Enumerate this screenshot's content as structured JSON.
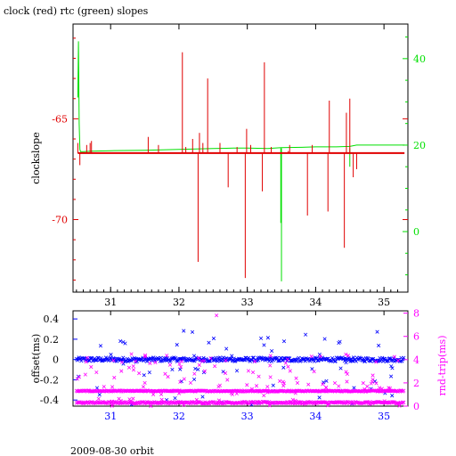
{
  "header": {
    "title": "clock (red) rtc (green) slopes"
  },
  "footer": {
    "label": "2009-08-30 orbit"
  },
  "colors": {
    "red": "#e00000",
    "green": "#00e000",
    "blue": "#0000ff",
    "magenta": "#ff00ff",
    "black": "#000000"
  },
  "chart_data": [
    {
      "type": "line",
      "title": "clock (red) rtc (green) slopes",
      "ylabel": "clockslope",
      "xlim": [
        30.45,
        35.35
      ],
      "ylim": [
        -73.6,
        -60.3
      ],
      "y2lim": [
        -14,
        48
      ],
      "x_ticks": [
        31,
        32,
        33,
        34,
        35
      ],
      "x_tick_labels": [
        "31",
        "32",
        "33",
        "34",
        "35"
      ],
      "y_ticks": [
        -65,
        -70
      ],
      "y_tick_labels": [
        "-65",
        "-70"
      ],
      "y2_ticks": [
        0,
        20,
        40
      ],
      "y2_tick_labels": [
        "0",
        "20",
        "40"
      ],
      "series": [
        {
          "color": "red",
          "axis": "left",
          "baseline": -66.7,
          "x": [
            30.52,
            30.55,
            30.65,
            30.7,
            30.72,
            31.55,
            31.7,
            32.05,
            32.1,
            32.2,
            32.28,
            32.3,
            32.35,
            32.42,
            32.6,
            32.72,
            32.85,
            32.97,
            32.99,
            33.05,
            33.22,
            33.25,
            33.35,
            33.6,
            33.62,
            33.88,
            33.95,
            34.18,
            34.2,
            34.42,
            34.45,
            34.5,
            34.55,
            34.6
          ],
          "y": [
            -66.2,
            -67.3,
            -66.3,
            -66.2,
            -66.1,
            -65.9,
            -66.3,
            -61.7,
            -66.4,
            -66.0,
            -72.1,
            -65.7,
            -66.2,
            -63.0,
            -66.2,
            -68.4,
            -66.4,
            -72.9,
            -65.5,
            -66.3,
            -68.6,
            -62.2,
            -66.4,
            -66.6,
            -66.3,
            -69.8,
            -66.3,
            -69.6,
            -64.1,
            -71.4,
            -64.7,
            -64.0,
            -67.9,
            -67.5
          ]
        },
        {
          "color": "green",
          "axis": "right",
          "x": [
            30.52,
            30.53,
            30.54,
            30.55,
            30.56,
            30.6,
            30.7,
            31.0,
            31.5,
            32.0,
            32.5,
            32.8,
            33.0,
            33.3,
            33.5,
            33.8,
            34.0,
            34.3,
            34.5,
            34.6,
            34.9,
            35.3
          ],
          "y": [
            31.0,
            44.0,
            25.0,
            19.0,
            18.5,
            18.5,
            18.6,
            18.7,
            18.8,
            19.0,
            19.2,
            19.3,
            19.3,
            19.2,
            19.4,
            19.5,
            19.6,
            19.6,
            19.7,
            20.0,
            20.0,
            20.0
          ],
          "dips": [
            {
              "x": 33.5,
              "y": -11.5
            },
            {
              "x": 33.49,
              "y": 2.0
            },
            {
              "x": 34.5,
              "y": 15.0
            }
          ]
        }
      ],
      "grid": false
    },
    {
      "type": "scatter",
      "ylabel": "offset(ms)",
      "y2label": "rnd-trip(ms)",
      "xlim": [
        30.45,
        35.35
      ],
      "ylim": [
        -0.46,
        0.48
      ],
      "y2lim": [
        0,
        8.2
      ],
      "x_ticks": [
        31,
        32,
        33,
        34,
        35
      ],
      "x_tick_labels": [
        "31",
        "32",
        "33",
        "34",
        "35"
      ],
      "y_ticks": [
        0.4,
        0.2,
        0,
        -0.2,
        -0.4
      ],
      "y_tick_labels": [
        "0.4",
        "0.2",
        "0",
        "-0.2",
        "-0.4"
      ],
      "y2_ticks": [
        0,
        2,
        4,
        6,
        8
      ],
      "y2_tick_labels": [
        "0",
        "2",
        "4",
        "6",
        "8"
      ],
      "series": [
        {
          "color": "blue",
          "axis": "left",
          "marker": "x",
          "center": 0.0,
          "spread": 0.02,
          "x_start": 30.5,
          "x_end": 35.3
        },
        {
          "color": "magenta",
          "axis": "right",
          "marker": "x",
          "center": 1.3,
          "spread": 0.05,
          "x_start": 30.5,
          "x_end": 35.3
        },
        {
          "color": "magenta",
          "axis": "right",
          "marker": "x",
          "center": 0.3,
          "spread": 0.08,
          "x_start": 30.5,
          "x_end": 35.3
        }
      ]
    }
  ]
}
